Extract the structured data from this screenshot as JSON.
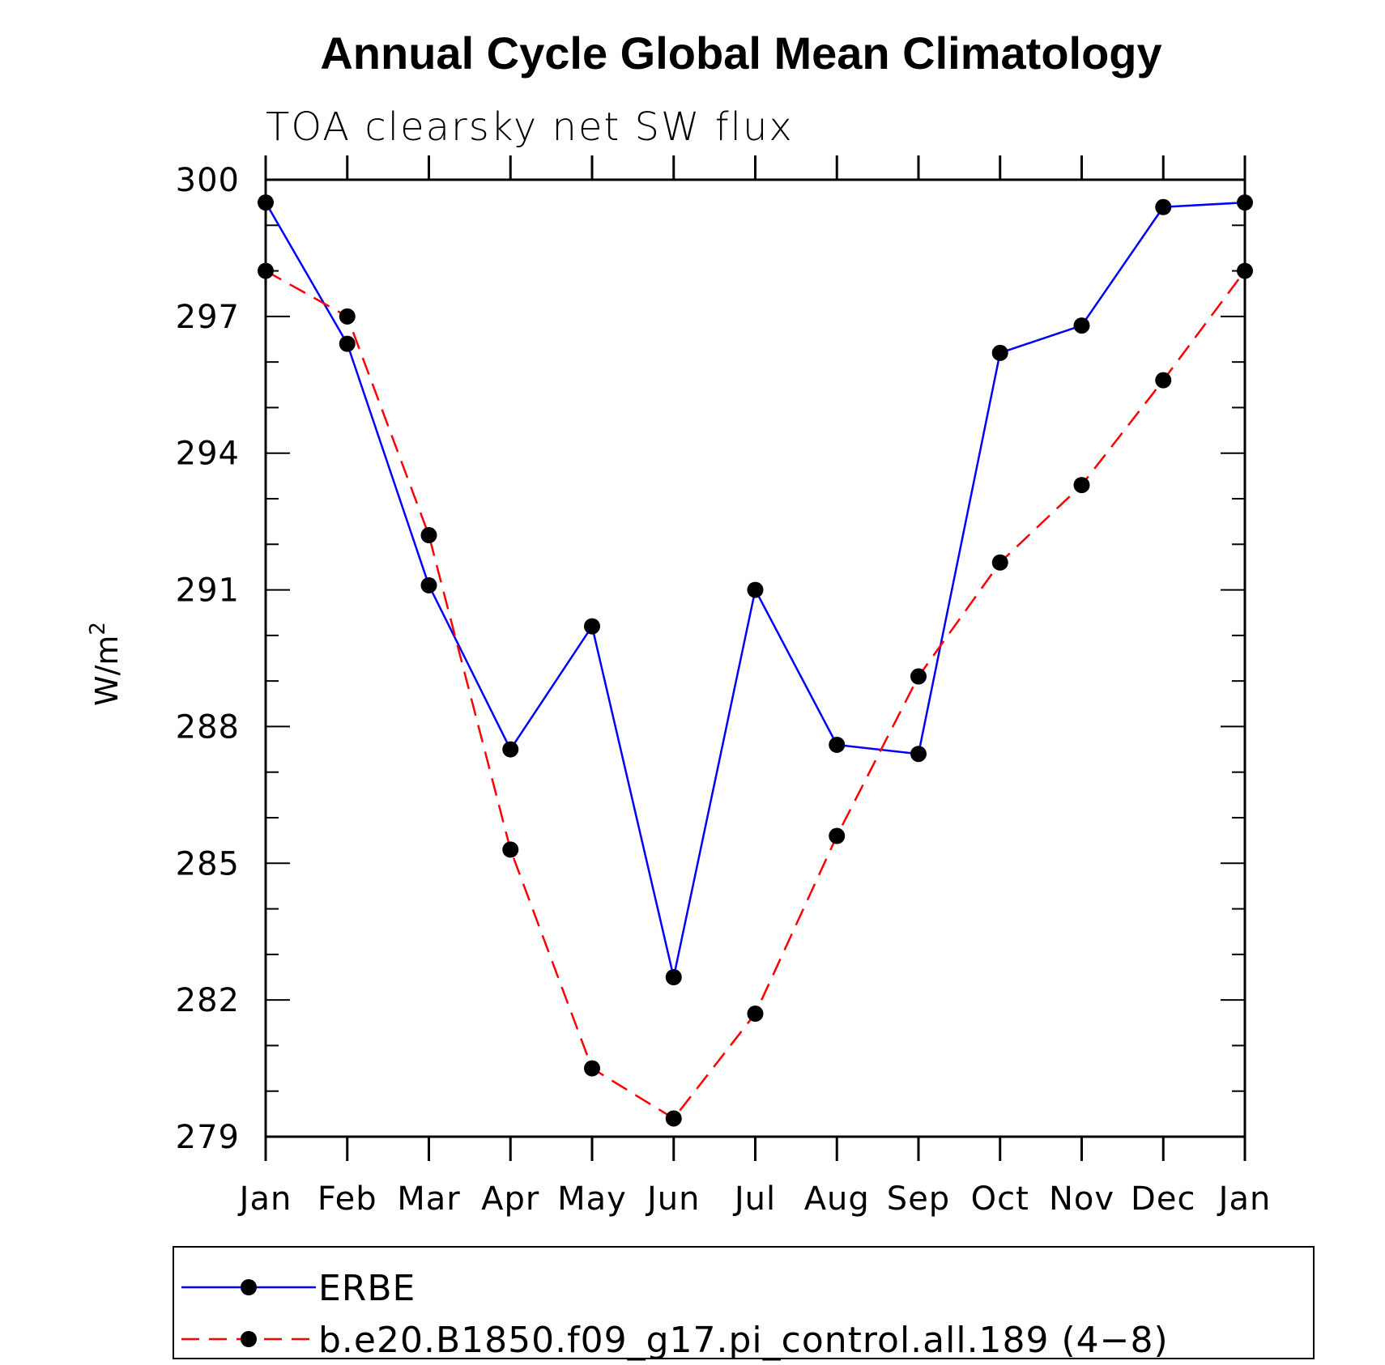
{
  "chart_data": {
    "type": "line",
    "title": "Annual Cycle Global Mean Climatology",
    "subtitle": "TOA clearsky net SW flux",
    "ylabel": "W/m",
    "ylabel_sup": "2",
    "categories": [
      "Jan",
      "Feb",
      "Mar",
      "Apr",
      "May",
      "Jun",
      "Jul",
      "Aug",
      "Sep",
      "Oct",
      "Nov",
      "Dec",
      "Jan"
    ],
    "ylim": [
      279,
      300
    ],
    "yticks": [
      279,
      282,
      285,
      288,
      291,
      294,
      297,
      300
    ],
    "series": [
      {
        "name": "ERBE",
        "color": "#0000ff",
        "dash": "solid",
        "values": [
          299.5,
          296.4,
          291.1,
          287.5,
          290.2,
          282.5,
          291.0,
          287.6,
          287.4,
          296.2,
          296.8,
          299.4,
          299.5
        ]
      },
      {
        "name": "b.e20.B1850.f09_g17.pi_control.all.189 (4−8)",
        "color": "#ff0000",
        "dash": "dashed",
        "values": [
          298.0,
          297.0,
          292.2,
          285.3,
          280.5,
          279.4,
          281.7,
          285.6,
          289.1,
          291.6,
          293.3,
          295.6,
          298.0
        ]
      }
    ]
  }
}
